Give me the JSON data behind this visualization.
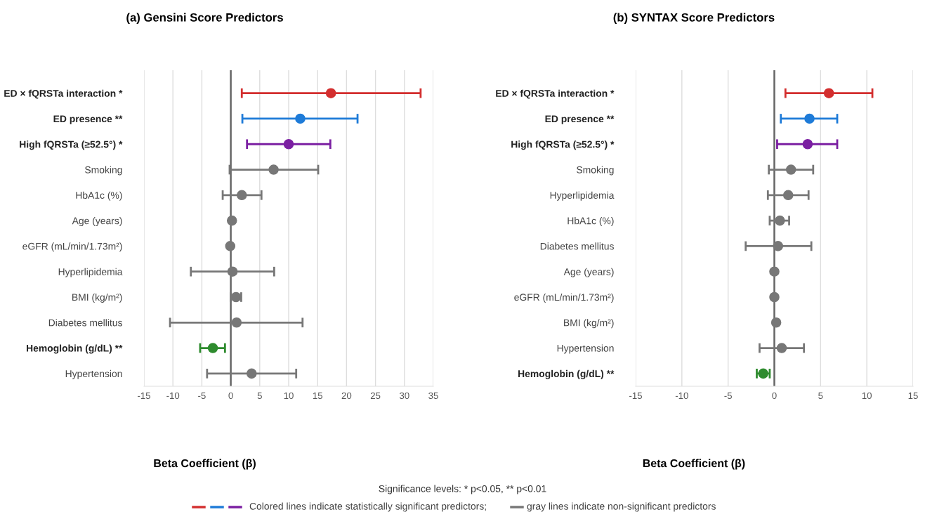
{
  "chart_data": [
    {
      "type": "scatter",
      "orientation": "horizontal",
      "title": "(a) Gensini Score Predictors",
      "xlabel": "Beta Coefficient (β)",
      "categories": [
        "ED × fQRSTa interaction *",
        "ED presence **",
        "High fQRSTa (≥52.5°) *",
        "Smoking",
        "HbA1c (%)",
        "Age (years)",
        "eGFR (mL/min/1.73m²)",
        "Hyperlipidemia",
        "BMI (kg/m²)",
        "Diabetes mellitus",
        "Hemoglobin (g/dL) **",
        "Hypertension"
      ],
      "values": [
        17.3,
        12.0,
        10.0,
        7.4,
        1.9,
        0.2,
        -0.1,
        0.3,
        0.9,
        1.0,
        -3.1,
        3.6
      ],
      "errors": [
        [
          1.9,
          32.8
        ],
        [
          2.0,
          21.9
        ],
        [
          2.8,
          17.2
        ],
        [
          -0.2,
          15.1
        ],
        [
          -1.4,
          5.3
        ],
        null,
        null,
        [
          -6.9,
          7.5
        ],
        [
          0.0,
          1.8
        ],
        [
          -10.5,
          12.4
        ],
        [
          -5.3,
          -1.0
        ],
        [
          -4.1,
          11.3
        ]
      ],
      "colors": [
        "#d32f2f",
        "#1e7bd8",
        "#7b1fa2",
        "#777777",
        "#777777",
        "#777777",
        "#777777",
        "#777777",
        "#777777",
        "#777777",
        "#2e8b2e",
        "#777777"
      ],
      "xlim": [
        -15,
        35
      ],
      "xticks": [
        -15,
        -10,
        -5,
        0,
        5,
        10,
        15,
        20,
        25,
        30,
        35
      ],
      "grid": "x",
      "marker": "circle",
      "ref_lines": [
        {
          "axis": "x",
          "value": 0,
          "color": "#666666"
        }
      ],
      "annotations": [
        "Significance levels: * p<0.05, ** p<0.01",
        "Colored lines indicate statistically significant predictors;",
        "gray lines indicate non-significant predictors"
      ]
    },
    {
      "type": "scatter",
      "orientation": "horizontal",
      "title": "(b) SYNTAX Score Predictors",
      "xlabel": "Beta Coefficient (β)",
      "categories": [
        "ED × fQRSTa interaction *",
        "ED presence **",
        "High fQRSTa (≥52.5°) *",
        "Smoking",
        "Hyperlipidemia",
        "HbA1c (%)",
        "Diabetes mellitus",
        "Age (years)",
        "eGFR (mL/min/1.73m²)",
        "BMI (kg/m²)",
        "Hypertension",
        "Hemoglobin (g/dL) **"
      ],
      "values": [
        5.9,
        3.8,
        3.6,
        1.8,
        1.5,
        0.6,
        0.4,
        0.0,
        0.0,
        0.2,
        0.8,
        -1.2
      ],
      "errors": [
        [
          1.2,
          10.6
        ],
        [
          0.7,
          6.8
        ],
        [
          0.3,
          6.8
        ],
        [
          -0.6,
          4.2
        ],
        [
          -0.7,
          3.7
        ],
        [
          -0.5,
          1.6
        ],
        [
          -3.1,
          4.0
        ],
        null,
        null,
        null,
        [
          -1.6,
          3.2
        ],
        [
          -1.9,
          -0.5
        ]
      ],
      "colors": [
        "#d32f2f",
        "#1e7bd8",
        "#7b1fa2",
        "#777777",
        "#777777",
        "#777777",
        "#777777",
        "#777777",
        "#777777",
        "#777777",
        "#777777",
        "#2e8b2e"
      ],
      "xlim": [
        -15,
        15
      ],
      "xticks": [
        -15,
        -10,
        -5,
        0,
        5,
        10,
        15
      ],
      "grid": "x",
      "marker": "circle",
      "ref_lines": [
        {
          "axis": "x",
          "value": 0,
          "color": "#666666"
        }
      ]
    }
  ]
}
